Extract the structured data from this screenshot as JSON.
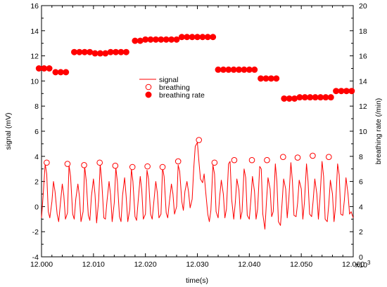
{
  "chart_data": {
    "type": "line",
    "xlabel": "time(s)",
    "x_multiplier_label": "x10",
    "x_multiplier_exp": "3",
    "ylabel_left": "signal (mV)",
    "ylabel_right": "breathing rate (/min)",
    "xlim": [
      12000,
      12060
    ],
    "ylim_left": [
      -4,
      16
    ],
    "ylim_right": [
      0,
      20
    ],
    "x_ticks": [
      12000,
      12010,
      12020,
      12030,
      12040,
      12050,
      12060
    ],
    "x_tick_labels": [
      "12.000",
      "12.010",
      "12.020",
      "12.030",
      "12.040",
      "12.050",
      "12.060"
    ],
    "y_left_ticks": [
      -4,
      -2,
      0,
      2,
      4,
      6,
      8,
      10,
      12,
      14,
      16
    ],
    "y_right_ticks": [
      0,
      2,
      4,
      6,
      8,
      10,
      12,
      14,
      16,
      18,
      20
    ],
    "grid": false,
    "legend": {
      "placement": "center-top",
      "entries": [
        "signal",
        "breathing",
        "breathing rate"
      ]
    },
    "series": [
      {
        "name": "signal",
        "kind": "line",
        "axis": "left",
        "color": "#ff0000",
        "x": [
          12000.0,
          12000.3,
          12000.7,
          12001.0,
          12001.3,
          12001.6,
          12002.0,
          12002.3,
          12002.6,
          12003.0,
          12003.3,
          12003.6,
          12004.0,
          12004.3,
          12004.6,
          12005.0,
          12005.3,
          12005.6,
          12006.0,
          12006.3,
          12006.6,
          12007.0,
          12007.3,
          12007.6,
          12008.0,
          12008.3,
          12008.6,
          12009.0,
          12009.3,
          12009.6,
          12010.0,
          12010.3,
          12010.6,
          12011.0,
          12011.3,
          12011.6,
          12012.0,
          12012.3,
          12012.6,
          12013.0,
          12013.3,
          12013.6,
          12014.0,
          12014.3,
          12014.6,
          12015.0,
          12015.3,
          12015.6,
          12016.0,
          12016.3,
          12016.6,
          12017.0,
          12017.3,
          12017.6,
          12018.0,
          12018.3,
          12018.6,
          12019.0,
          12019.3,
          12019.6,
          12020.0,
          12020.3,
          12020.6,
          12021.0,
          12021.3,
          12021.6,
          12022.0,
          12022.3,
          12022.6,
          12023.0,
          12023.3,
          12023.6,
          12024.0,
          12024.3,
          12024.6,
          12025.0,
          12025.3,
          12025.6,
          12026.0,
          12026.3,
          12026.6,
          12027.0,
          12027.3,
          12027.6,
          12028.0,
          12028.3,
          12028.6,
          12029.0,
          12029.3,
          12029.6,
          12030.0,
          12030.3,
          12030.6,
          12031.0,
          12031.3,
          12031.6,
          12032.0,
          12032.3,
          12032.6,
          12033.0,
          12033.3,
          12033.6,
          12034.0,
          12034.3,
          12034.6,
          12035.0,
          12035.3,
          12035.6,
          12036.0,
          12036.3,
          12036.6,
          12037.0,
          12037.3,
          12037.6,
          12038.0,
          12038.3,
          12038.6,
          12039.0,
          12039.3,
          12039.6,
          12040.0,
          12040.3,
          12040.6,
          12041.0,
          12041.3,
          12041.6,
          12042.0,
          12042.3,
          12042.6,
          12043.0,
          12043.3,
          12043.6,
          12044.0,
          12044.3,
          12044.6,
          12045.0,
          12045.3,
          12045.6,
          12046.0,
          12046.3,
          12046.6,
          12047.0,
          12047.3,
          12047.6,
          12048.0,
          12048.3,
          12048.6,
          12049.0,
          12049.3,
          12049.6,
          12050.0,
          12050.3,
          12050.6,
          12051.0,
          12051.3,
          12051.6,
          12052.0,
          12052.3,
          12052.6,
          12053.0,
          12053.3,
          12053.6,
          12054.0,
          12054.3,
          12054.6,
          12055.0,
          12055.3,
          12055.6,
          12056.0,
          12056.3,
          12056.6,
          12057.0,
          12057.3,
          12057.6,
          12058.0,
          12058.3,
          12058.6,
          12059.0,
          12059.3,
          12059.6,
          12060.0
        ],
        "y": [
          -0.9,
          0.8,
          3.4,
          2.6,
          -0.4,
          -0.9,
          0.4,
          2.0,
          1.2,
          -0.6,
          -1.2,
          0.1,
          1.8,
          0.9,
          -1.0,
          -0.5,
          3.3,
          2.4,
          -0.6,
          -1.0,
          0.6,
          1.8,
          0.8,
          -1.2,
          -0.4,
          3.2,
          2.1,
          -0.7,
          -1.1,
          0.8,
          2.2,
          1.0,
          -1.3,
          0.5,
          3.4,
          2.0,
          -0.9,
          -1.0,
          0.4,
          2.0,
          0.9,
          -1.2,
          0.3,
          3.1,
          2.0,
          -0.8,
          -1.2,
          0.9,
          2.3,
          0.8,
          -1.2,
          -0.2,
          3.0,
          2.0,
          -0.8,
          -1.1,
          0.4,
          2.4,
          1.3,
          -1.0,
          -0.6,
          2.9,
          2.2,
          -0.6,
          -1.0,
          0.3,
          2.0,
          1.1,
          -0.9,
          -0.6,
          3.1,
          2.4,
          -0.5,
          -0.9,
          0.3,
          1.8,
          1.0,
          -0.6,
          0.0,
          3.3,
          2.8,
          0.4,
          -0.3,
          1.2,
          2.0,
          1.2,
          -0.1,
          0.6,
          3.0,
          4.8,
          5.1,
          3.6,
          2.2,
          1.9,
          2.6,
          1.2,
          -0.6,
          -1.2,
          -0.3,
          3.3,
          2.6,
          -0.4,
          -0.9,
          0.8,
          2.1,
          1.0,
          -0.9,
          -0.2,
          3.4,
          3.6,
          0.6,
          -1.0,
          0.3,
          2.2,
          1.3,
          -1.0,
          -0.4,
          3.0,
          2.3,
          -0.7,
          -1.0,
          0.5,
          2.4,
          1.2,
          -1.0,
          -0.2,
          3.2,
          3.0,
          -0.6,
          -1.8,
          0.4,
          2.3,
          1.4,
          -0.8,
          -0.4,
          3.4,
          2.0,
          -1.2,
          -1.5,
          0.2,
          2.2,
          1.4,
          -0.9,
          0.5,
          3.5,
          2.0,
          -0.7,
          -0.8,
          0.3,
          2.1,
          1.4,
          -1.0,
          0.3,
          3.4,
          2.0,
          -0.6,
          -0.8,
          0.5,
          2.2,
          1.0,
          -1.0,
          0.6,
          3.6,
          2.4,
          -1.0,
          -1.2,
          0.2,
          2.1,
          1.0,
          -1.2,
          0.0,
          3.4,
          2.5,
          -0.6,
          -0.7,
          0.5,
          2.3,
          1.0,
          -0.6,
          -0.4,
          -0.9
        ]
      },
      {
        "name": "breathing",
        "kind": "open-marker",
        "axis": "left",
        "color": "#ff0000",
        "x": [
          12001.0,
          12005.0,
          12008.2,
          12011.2,
          12014.2,
          12017.5,
          12020.4,
          12023.3,
          12026.3,
          12030.3,
          12033.3,
          12037.1,
          12040.5,
          12043.4,
          12046.5,
          12049.3,
          12052.2,
          12055.3
        ],
        "y": [
          3.5,
          3.4,
          3.3,
          3.5,
          3.25,
          3.15,
          3.2,
          3.15,
          3.6,
          5.3,
          3.5,
          3.7,
          3.7,
          3.7,
          3.95,
          3.9,
          4.05,
          3.95
        ]
      },
      {
        "name": "breathing rate",
        "kind": "filled-marker",
        "axis": "right",
        "color": "#ff0000",
        "x": [
          11999.5,
          12000.5,
          12001.5,
          12002.7,
          12003.7,
          12004.7,
          12006.3,
          12007.3,
          12008.3,
          12009.3,
          12010.3,
          12011.3,
          12012.3,
          12013.3,
          12014.3,
          12015.3,
          12016.3,
          12018.0,
          12019.0,
          12020.0,
          12021.0,
          12022.0,
          12023.0,
          12024.0,
          12025.0,
          12026.0,
          12027.0,
          12028.0,
          12029.0,
          12030.0,
          12031.0,
          12032.0,
          12033.0,
          12034.0,
          12035.0,
          12036.0,
          12037.0,
          12038.0,
          12039.0,
          12040.0,
          12041.0,
          12042.2,
          12043.2,
          12044.2,
          12045.2,
          12046.7,
          12047.7,
          12048.7,
          12049.7,
          12050.7,
          12051.7,
          12052.7,
          12053.7,
          12054.7,
          12055.7,
          12056.7,
          12057.7,
          12058.7,
          12059.7
        ],
        "y": [
          15.0,
          15.0,
          15.0,
          14.7,
          14.7,
          14.7,
          16.3,
          16.3,
          16.3,
          16.3,
          16.2,
          16.2,
          16.2,
          16.3,
          16.3,
          16.3,
          16.3,
          17.2,
          17.2,
          17.3,
          17.3,
          17.3,
          17.3,
          17.3,
          17.3,
          17.3,
          17.5,
          17.5,
          17.5,
          17.5,
          17.5,
          17.5,
          17.5,
          14.9,
          14.9,
          14.9,
          14.9,
          14.9,
          14.9,
          14.9,
          14.9,
          14.2,
          14.2,
          14.2,
          14.2,
          12.6,
          12.6,
          12.6,
          12.7,
          12.7,
          12.7,
          12.7,
          12.7,
          12.7,
          12.7,
          13.2,
          13.2,
          13.2,
          13.2
        ]
      }
    ]
  }
}
